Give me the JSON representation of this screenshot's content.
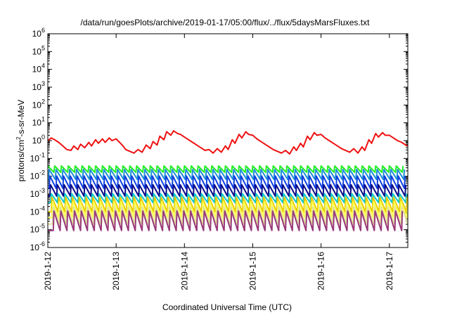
{
  "chart_data": {
    "type": "line",
    "title": "/data/run/goesPlots/archive/2019-01-17/05:00/flux/../flux/5daysMarsFluxes.txt",
    "xlabel": "Coordinated Universal Time (UTC)",
    "ylabel": {
      "prefix": "protons/cm",
      "superscript": "2",
      "suffix": "-s-sr-MeV"
    },
    "y_scale": "log",
    "ylim_exponent": [
      -6,
      6
    ],
    "y_tick_labels": [
      {
        "base": "10",
        "exp": "-6"
      },
      {
        "base": "10",
        "exp": "-5"
      },
      {
        "base": "10",
        "exp": "-4"
      },
      {
        "base": "10",
        "exp": "-3"
      },
      {
        "base": "10",
        "exp": "-2"
      },
      {
        "base": "10",
        "exp": "-1"
      },
      {
        "base": "10",
        "exp": "0"
      },
      {
        "base": "10",
        "exp": "1"
      },
      {
        "base": "10",
        "exp": "2"
      },
      {
        "base": "10",
        "exp": "3"
      },
      {
        "base": "10",
        "exp": "4"
      },
      {
        "base": "10",
        "exp": "5"
      },
      {
        "base": "10",
        "exp": "6"
      }
    ],
    "x_tick_labels": [
      "2019-1-12",
      "2019-1-13",
      "2019-1-14",
      "2019-1-15",
      "2019-1-16",
      "2019-1-17"
    ],
    "x_ticks_days": [
      0,
      1,
      2,
      3,
      4,
      5
    ],
    "x_range_days": [
      0,
      5.27
    ],
    "grid": false,
    "legend": "none",
    "series": [
      {
        "color": "#ee1111",
        "x": [
          0,
          0.05,
          0.1,
          0.16,
          0.22,
          0.28,
          0.34,
          0.38,
          0.44,
          0.48,
          0.54,
          0.6,
          0.64,
          0.7,
          0.74,
          0.8,
          0.84,
          0.9,
          0.94,
          1.0,
          1.04,
          1.1,
          1.14,
          1.2,
          1.26,
          1.32,
          1.38,
          1.44,
          1.5,
          1.54,
          1.6,
          1.64,
          1.7,
          1.74,
          1.8,
          1.84,
          1.9,
          1.94,
          2.0,
          2.06,
          2.12,
          2.18,
          2.24,
          2.3,
          2.36,
          2.42,
          2.48,
          2.54,
          2.6,
          2.64,
          2.7,
          2.74,
          2.8,
          2.84,
          2.9,
          2.94,
          3.0,
          3.06,
          3.12,
          3.18,
          3.24,
          3.3,
          3.36,
          3.42,
          3.48,
          3.54,
          3.6,
          3.64,
          3.7,
          3.74,
          3.8,
          3.84,
          3.9,
          3.94,
          4.0,
          4.06,
          4.12,
          4.18,
          4.24,
          4.3,
          4.36,
          4.42,
          4.48,
          4.54,
          4.6,
          4.64,
          4.7,
          4.74,
          4.8,
          4.84,
          4.9,
          4.94,
          5.0,
          5.06,
          5.12,
          5.18,
          5.24,
          5.27
        ],
        "log10_y": [
          0.0,
          0.15,
          0.05,
          -0.1,
          -0.3,
          -0.5,
          -0.55,
          -0.3,
          -0.5,
          -0.2,
          -0.4,
          -0.1,
          -0.3,
          0.05,
          -0.15,
          0.1,
          -0.1,
          0.15,
          0.0,
          0.1,
          -0.05,
          -0.3,
          -0.5,
          -0.6,
          -0.7,
          -0.5,
          -0.65,
          -0.25,
          -0.45,
          -0.05,
          -0.25,
          0.25,
          0.05,
          0.5,
          0.3,
          0.55,
          0.4,
          0.35,
          0.2,
          0.05,
          -0.1,
          -0.25,
          -0.4,
          -0.55,
          -0.5,
          -0.7,
          -0.45,
          -0.65,
          -0.3,
          -0.5,
          0.05,
          -0.15,
          0.35,
          0.15,
          0.5,
          0.35,
          0.3,
          0.1,
          -0.05,
          -0.2,
          -0.35,
          -0.5,
          -0.6,
          -0.7,
          -0.55,
          -0.75,
          -0.35,
          -0.55,
          -0.15,
          -0.35,
          0.25,
          0.05,
          0.45,
          0.3,
          0.35,
          0.15,
          0.0,
          -0.15,
          -0.3,
          -0.45,
          -0.55,
          -0.65,
          -0.45,
          -0.7,
          -0.35,
          -0.55,
          0.05,
          -0.15,
          0.4,
          0.2,
          0.45,
          0.3,
          0.3,
          0.15,
          0.0,
          -0.1,
          -0.25,
          -0.3
        ]
      },
      {
        "color": "#22ee22",
        "sawtooth": {
          "high": -1.42,
          "low": -1.78,
          "period_days": 0.1,
          "phase_days": 0.0
        }
      },
      {
        "color": "#1f8fd8",
        "sawtooth": {
          "high": -1.62,
          "low": -2.18,
          "period_days": 0.1,
          "phase_days": 0.02
        }
      },
      {
        "color": "#1040e0",
        "sawtooth": {
          "high": -1.98,
          "low": -2.68,
          "period_days": 0.1,
          "phase_days": 0.03
        }
      },
      {
        "color": "#0a0a88",
        "sawtooth": {
          "high": -2.48,
          "low": -3.12,
          "period_days": 0.1,
          "phase_days": 0.04
        }
      },
      {
        "color": "#12c8c8",
        "sawtooth": {
          "high": -2.98,
          "low": -3.48,
          "period_days": 0.1,
          "phase_days": 0.05
        }
      },
      {
        "color": "#e8c800",
        "sawtooth": {
          "high": -3.18,
          "low": -4.0,
          "period_days": 0.1,
          "phase_days": 0.06
        }
      },
      {
        "color": "#ffff55",
        "sawtooth": {
          "high": -3.42,
          "low": -4.32,
          "period_days": 0.1,
          "phase_days": 0.07
        }
      },
      {
        "color": "#e0e0a0",
        "sawtooth": {
          "high": -3.72,
          "low": -4.68,
          "period_days": 0.1,
          "phase_days": 0.08
        }
      },
      {
        "color": "#9a3a7a",
        "sawtooth": {
          "high": -3.95,
          "low": -5.05,
          "period_days": 0.1,
          "phase_days": 0.09
        }
      }
    ]
  }
}
